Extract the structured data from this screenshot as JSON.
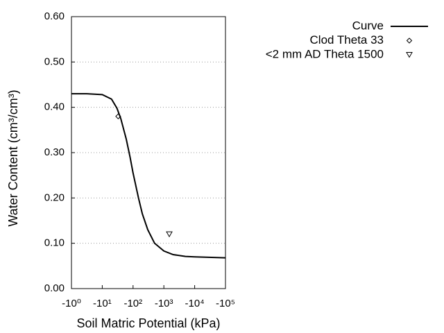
{
  "chart_data": {
    "type": "line",
    "xlabel": "Soil Matric Potential (kPa)",
    "ylabel": "Water Content (cm³/cm³)",
    "xscale": "log",
    "xlim": [
      1,
      100000
    ],
    "xticks": [
      {
        "value": 1,
        "label": "-10⁰"
      },
      {
        "value": 10,
        "label": "-10¹"
      },
      {
        "value": 100,
        "label": "-10²"
      },
      {
        "value": 1000,
        "label": "-10³"
      },
      {
        "value": 10000,
        "label": "-10⁴"
      },
      {
        "value": 100000,
        "label": "-10⁵"
      }
    ],
    "ylim": [
      0,
      0.6
    ],
    "yticks": [
      {
        "value": 0,
        "label": "0.00"
      },
      {
        "value": 0.1,
        "label": "0.10"
      },
      {
        "value": 0.2,
        "label": "0.20"
      },
      {
        "value": 0.3,
        "label": "0.30"
      },
      {
        "value": 0.4,
        "label": "0.40"
      },
      {
        "value": 0.5,
        "label": "0.50"
      },
      {
        "value": 0.6,
        "label": "0.60"
      }
    ],
    "grid": true,
    "legend": "top-right",
    "series": [
      {
        "name": "Curve",
        "color": "#000000",
        "marker": "line",
        "x": [
          1,
          3,
          10,
          20,
          30,
          40,
          60,
          80,
          100,
          150,
          200,
          300,
          500,
          1000,
          2000,
          5000,
          10000,
          100000
        ],
        "values": [
          0.43,
          0.43,
          0.428,
          0.418,
          0.398,
          0.375,
          0.33,
          0.29,
          0.255,
          0.2,
          0.165,
          0.13,
          0.1,
          0.083,
          0.075,
          0.071,
          0.07,
          0.068
        ]
      },
      {
        "name": "Clod Theta 33",
        "color": "#000000",
        "marker": "diamond",
        "x": [
          33
        ],
        "values": [
          0.38
        ]
      },
      {
        "name": "<2 mm AD Theta 1500",
        "color": "#000000",
        "marker": "triangle-down",
        "x": [
          1500
        ],
        "values": [
          0.12
        ]
      }
    ]
  }
}
